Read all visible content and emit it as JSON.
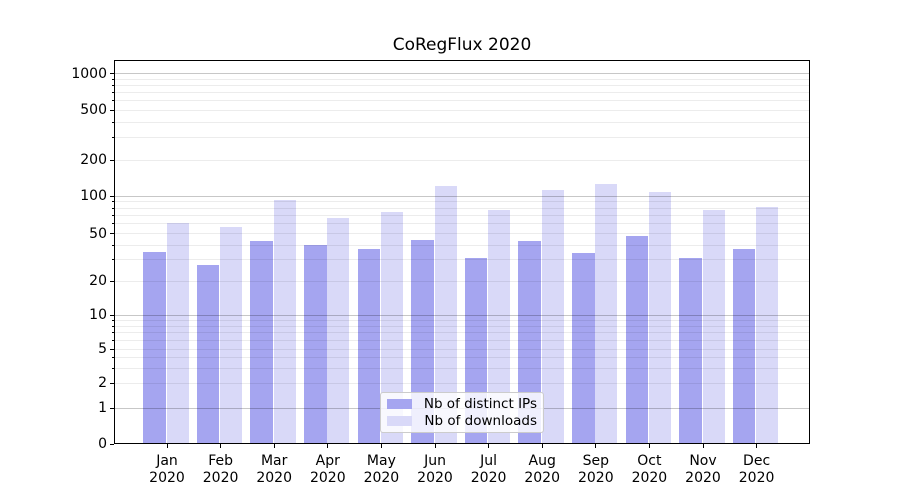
{
  "chart_data": {
    "type": "bar",
    "title": "CoRegFlux 2020",
    "categories": [
      "Jan",
      "Feb",
      "Mar",
      "Apr",
      "May",
      "Jun",
      "Jul",
      "Aug",
      "Sep",
      "Oct",
      "Nov",
      "Dec"
    ],
    "year_label": "2020",
    "series": [
      {
        "name": "Nb of distinct IPs",
        "color": "#a5a5f0",
        "values": [
          35,
          27,
          43,
          40,
          37,
          44,
          31,
          43,
          34,
          48,
          31,
          37
        ]
      },
      {
        "name": "Nb of downloads",
        "color": "#d9d9f8",
        "values": [
          61,
          56,
          93,
          66,
          75,
          121,
          77,
          112,
          127,
          109,
          77,
          82
        ]
      }
    ],
    "xlabel": "",
    "ylabel": "",
    "y_scale": "symlog",
    "y_ticks": [
      0,
      1,
      2,
      5,
      10,
      20,
      50,
      100,
      200,
      500,
      1000
    ],
    "ylim": [
      0,
      1265
    ],
    "grid": "both",
    "legend_position": "lower-center"
  },
  "colors": {
    "bar_distinct_ips": "#a5a5f0",
    "bar_downloads": "#d9d9f8",
    "grid_major": "#c6c6c6",
    "grid_minor": "#ececec",
    "spine": "#000000",
    "background": "#ffffff"
  }
}
